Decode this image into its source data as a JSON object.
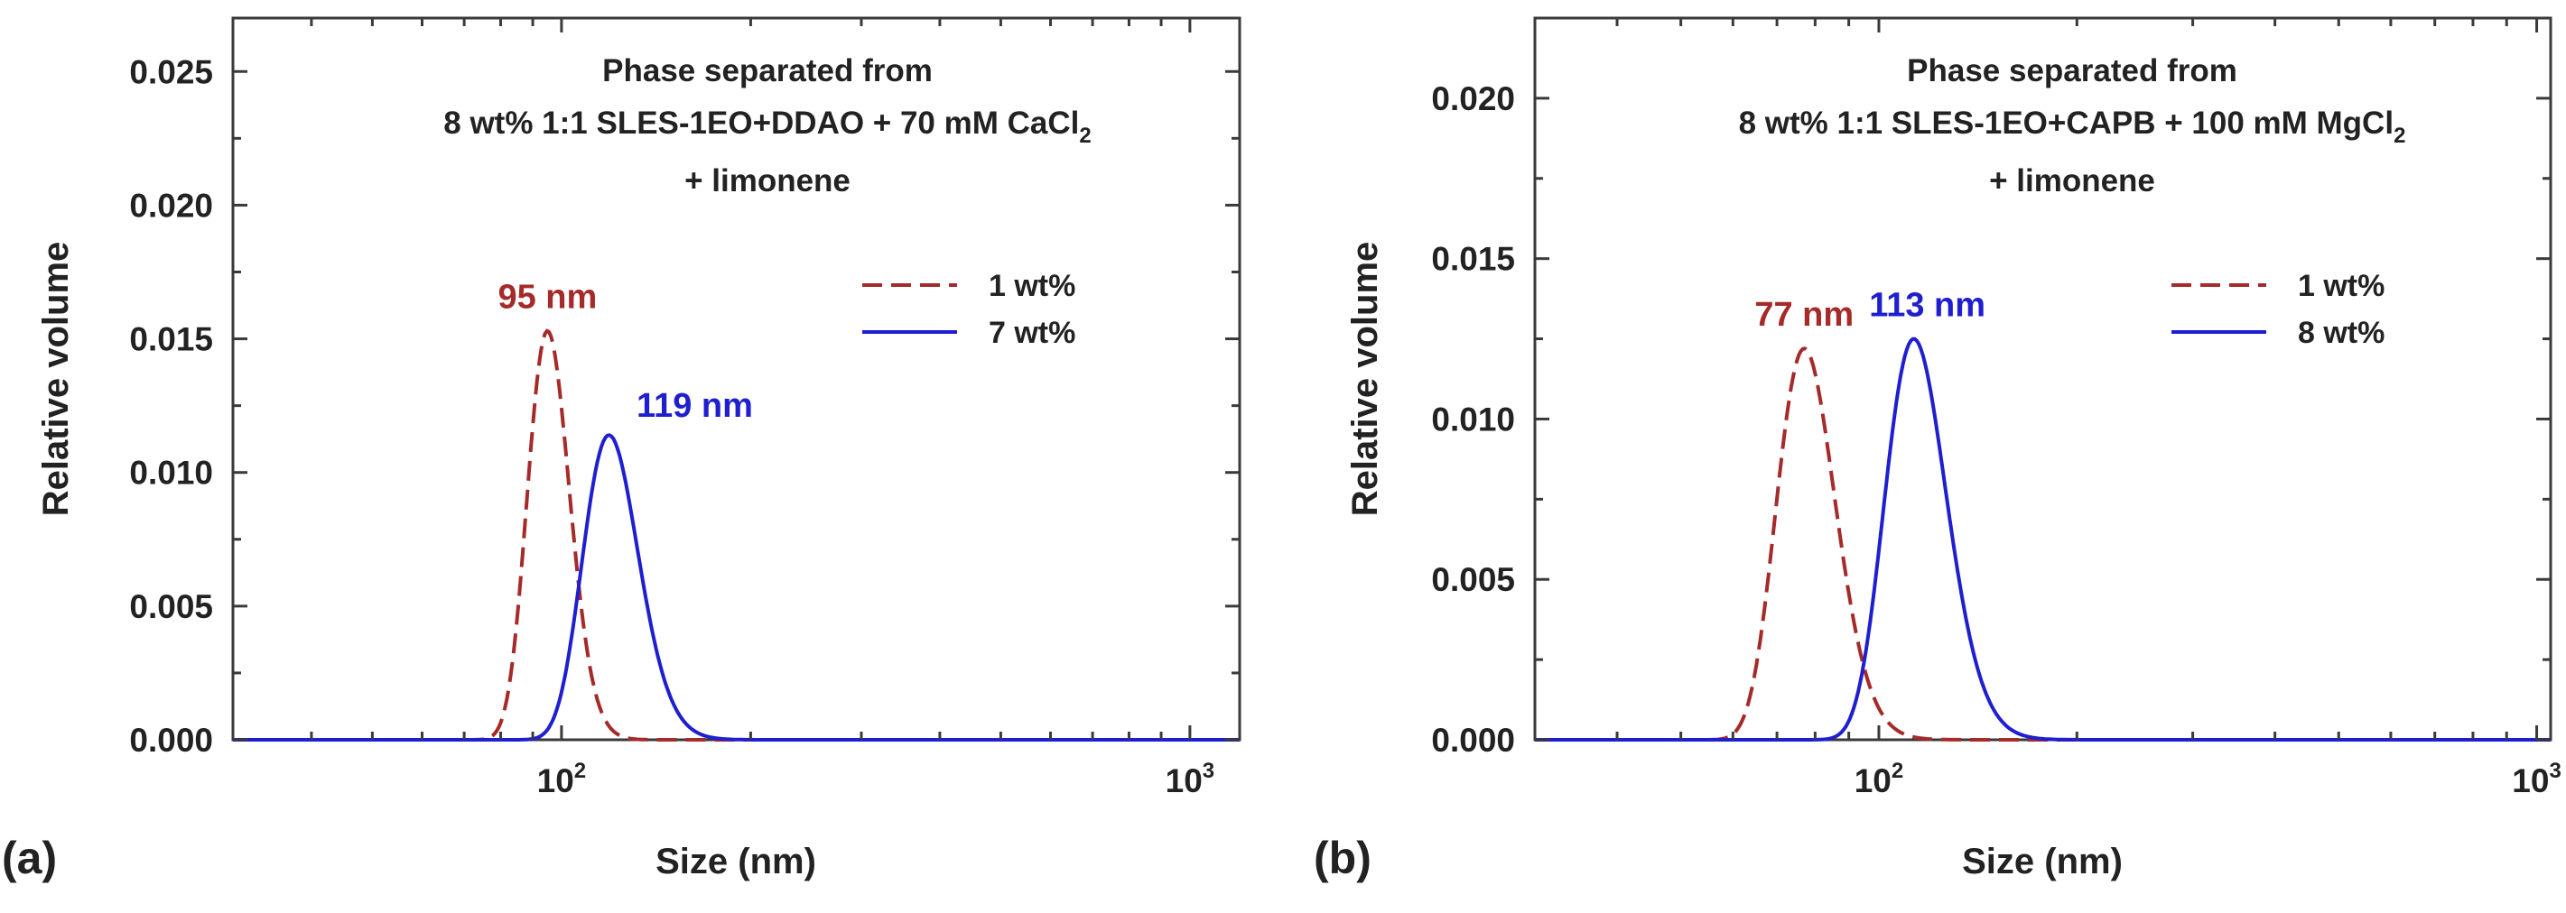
{
  "chart_data": [
    {
      "type": "line",
      "panel_label": "(a)",
      "title": [
        "Phase separated from",
        "8 wt% 1:1 SLES-1EO+DDAO + 70 mM CaCl",
        "+ limonene"
      ],
      "title_subscript": "2",
      "xlabel": "Size (nm)",
      "ylabel": "Relative volume",
      "xscale": "log",
      "xlim": [
        30,
        1200
      ],
      "ylim": [
        0,
        0.027
      ],
      "xticks": [
        {
          "base": "10",
          "exp": "2",
          "value": 100
        },
        {
          "base": "10",
          "exp": "3",
          "value": 1000
        }
      ],
      "yticks": [
        "0.000",
        "0.005",
        "0.010",
        "0.015",
        "0.020",
        "0.025"
      ],
      "legend": {
        "placement": "top-right"
      },
      "series": [
        {
          "name": "1 wt%",
          "style": "dashed",
          "color": "#a52a2a",
          "onset": 52,
          "peak_x": 95,
          "peak_y": 0.0153,
          "shape": 0.17,
          "peak_label": "95 nm"
        },
        {
          "name": "7 wt%",
          "style": "solid",
          "color": "#1f1fd0",
          "onset": 64,
          "peak_x": 119,
          "peak_y": 0.0114,
          "shape": 0.22,
          "peak_label": "119 nm"
        }
      ]
    },
    {
      "type": "line",
      "panel_label": "(b)",
      "title": [
        "Phase separated from",
        "8 wt% 1:1 SLES-1EO+CAPB + 100 mM MgCl",
        "+ limonene"
      ],
      "title_subscript": "2",
      "xlabel": "Size (nm)",
      "ylabel": "Relative volume",
      "xscale": "log",
      "xlim": [
        30,
        1050
      ],
      "ylim": [
        0,
        0.0225
      ],
      "xticks": [
        {
          "base": "10",
          "exp": "2",
          "value": 100
        },
        {
          "base": "10",
          "exp": "3",
          "value": 1000
        }
      ],
      "yticks": [
        "0.000",
        "0.005",
        "0.010",
        "0.015",
        "0.020"
      ],
      "legend": {
        "placement": "top-right"
      },
      "series": [
        {
          "name": "1 wt%",
          "style": "dashed",
          "color": "#a52a2a",
          "onset": 41,
          "peak_x": 77,
          "peak_y": 0.0122,
          "shape": 0.22,
          "peak_label": "77 nm"
        },
        {
          "name": "8 wt%",
          "style": "solid",
          "color": "#1f1fd0",
          "onset": 60,
          "peak_x": 113,
          "peak_y": 0.0125,
          "shape": 0.23,
          "peak_label": "113 nm"
        }
      ]
    }
  ]
}
